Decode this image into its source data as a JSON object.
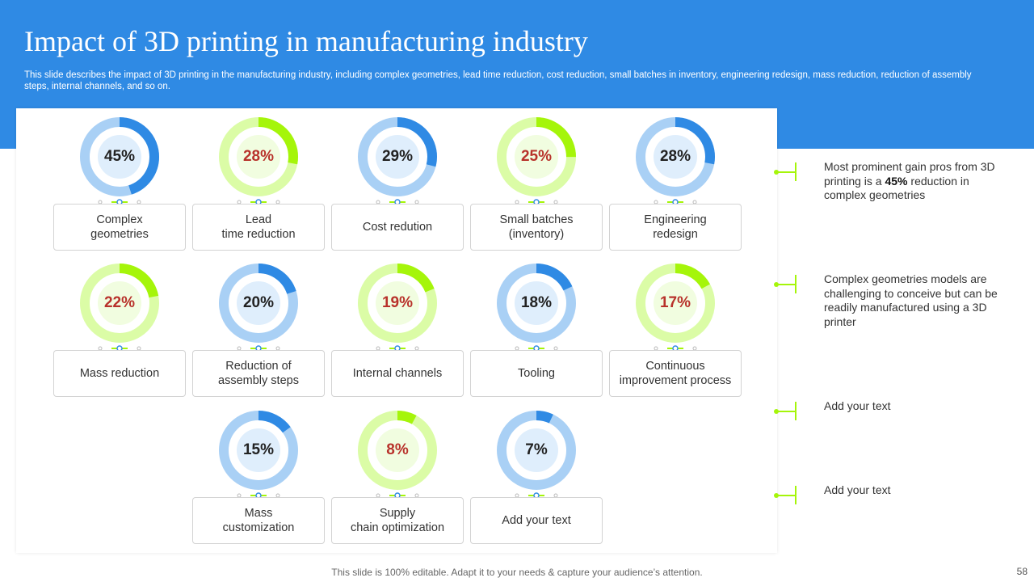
{
  "title": "Impact of 3D printing in manufacturing industry",
  "subtitle": "This slide describes the impact of 3D printing in the manufacturing industry, including complex geometries, lead time reduction, cost reduction, small batches in inventory, engineering redesign, mass reduction, reduction of assembly steps, internal channels, and so on.",
  "colors": {
    "header_bg": "#2f8ae4",
    "blue_accent": "#2f8ae4",
    "blue_track": "#a9d0f5",
    "blue_inner": "#dfeefc",
    "green_accent": "#a5f50a",
    "green_track": "#dbfca6",
    "green_inner": "#f1fde0",
    "red_text": "#b8322b",
    "dark_text": "#222222"
  },
  "items": [
    {
      "pct_value": 45,
      "pct_label": "45%",
      "label": "Complex\ngeometries",
      "theme": "blue"
    },
    {
      "pct_value": 28,
      "pct_label": "28%",
      "label": "Lead\ntime reduction",
      "theme": "green"
    },
    {
      "pct_value": 29,
      "pct_label": "29%",
      "label": "Cost redution",
      "theme": "blue"
    },
    {
      "pct_value": 25,
      "pct_label": "25%",
      "label": "Small batches\n(inventory)",
      "theme": "green"
    },
    {
      "pct_value": 28,
      "pct_label": "28%",
      "label": "Engineering\nredesign",
      "theme": "blue"
    },
    {
      "pct_value": 22,
      "pct_label": "22%",
      "label": "Mass reduction",
      "theme": "green"
    },
    {
      "pct_value": 20,
      "pct_label": "20%",
      "label": "Reduction of\nassembly steps",
      "theme": "blue"
    },
    {
      "pct_value": 19,
      "pct_label": "19%",
      "label": "Internal channels",
      "theme": "green"
    },
    {
      "pct_value": 18,
      "pct_label": "18%",
      "label": "Tooling",
      "theme": "blue"
    },
    {
      "pct_value": 17,
      "pct_label": "17%",
      "label": "Continuous\nimprovement process",
      "theme": "green"
    },
    {
      "pct_value": 15,
      "pct_label": "15%",
      "label": "Mass\ncustomization",
      "theme": "blue"
    },
    {
      "pct_value": 8,
      "pct_label": "8%",
      "label": "Supply\nchain optimization",
      "theme": "green"
    },
    {
      "pct_value": 7,
      "pct_label": "7%",
      "label": "Add your text",
      "theme": "blue"
    }
  ],
  "notes": [
    {
      "before": "Most prominent gain pros from 3D printing is a ",
      "bold": "45%",
      "after": " reduction in complex geometries"
    },
    {
      "before": "Complex geometries models are challenging to conceive but can be readily manufactured using a 3D printer",
      "bold": "",
      "after": ""
    },
    {
      "before": "Add your text",
      "bold": "",
      "after": ""
    },
    {
      "before": "Add your text",
      "bold": "",
      "after": ""
    }
  ],
  "footer": "This slide is 100% editable. Adapt it to your needs & capture your audience’s attention.",
  "page_number": "58"
}
